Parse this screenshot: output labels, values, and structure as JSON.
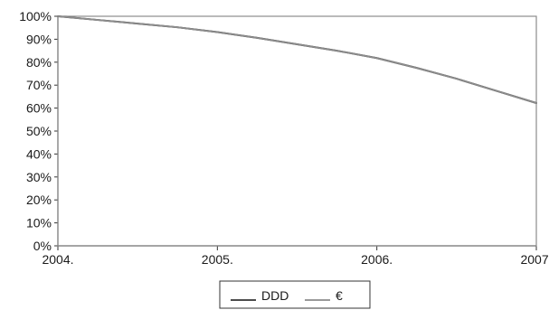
{
  "chart_data": {
    "type": "line",
    "title": "",
    "xlabel": "",
    "ylabel": "",
    "x": [
      "2004.",
      "2005.",
      "2006.",
      "2007."
    ],
    "x_values": [
      2004.0,
      2004.25,
      2004.5,
      2004.75,
      2005.0,
      2005.25,
      2005.5,
      2005.75,
      2006.0,
      2006.25,
      2006.5,
      2006.75,
      2007.0
    ],
    "ylim": [
      0,
      100
    ],
    "y_ticks": [
      "0%",
      "10%",
      "20%",
      "30%",
      "40%",
      "50%",
      "60%",
      "70%",
      "80%",
      "90%",
      "100%"
    ],
    "grid": false,
    "legend_position": "bottom",
    "series": [
      {
        "name": "DDD",
        "color": "#333333",
        "values": [
          100,
          98.4,
          96.8,
          95.2,
          93.1,
          90.6,
          87.8,
          85.0,
          81.8,
          77.5,
          72.8,
          67.5,
          62.2
        ]
      },
      {
        "name": "€",
        "color": "#8c8c8c",
        "values": [
          100,
          98.4,
          96.8,
          95.2,
          93.1,
          90.6,
          87.8,
          85.0,
          81.8,
          77.5,
          72.8,
          67.5,
          62.2
        ]
      }
    ]
  }
}
